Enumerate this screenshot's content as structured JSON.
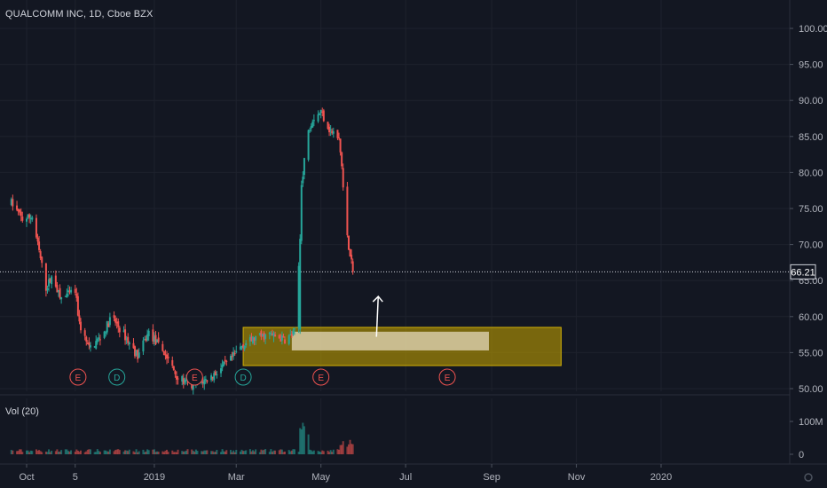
{
  "chart_data": {
    "type": "candlestick",
    "title": "QUALCOMM INC, 1D, Cboe BZX",
    "last_price": "66.21",
    "ylim": [
      50,
      100
    ],
    "y_ticks": [
      "100.00",
      "95.00",
      "90.00",
      "85.00",
      "80.00",
      "75.00",
      "70.00",
      "65.00",
      "60.00",
      "55.00",
      "50.00"
    ],
    "x_ticks": [
      "Oct",
      "5",
      "2019",
      "Mar",
      "May",
      "Jul",
      "Sep",
      "Nov",
      "2020"
    ],
    "volume": {
      "label": "Vol (20)",
      "ticks": [
        "100M",
        "0"
      ]
    },
    "price_path": [
      [
        "2018-09-20",
        75.8
      ],
      [
        "2018-09-28",
        73.5
      ],
      [
        "2018-10-05",
        73.9
      ],
      [
        "2018-10-10",
        69.0
      ],
      [
        "2018-10-15",
        64.0
      ],
      [
        "2018-10-20",
        65.8
      ],
      [
        "2018-10-25",
        62.5
      ],
      [
        "2018-11-05",
        63.5
      ],
      [
        "2018-11-08",
        59.0
      ],
      [
        "2018-11-15",
        55.5
      ],
      [
        "2018-11-25",
        57.5
      ],
      [
        "2018-12-01",
        60.0
      ],
      [
        "2018-12-10",
        57.5
      ],
      [
        "2018-12-20",
        54.5
      ],
      [
        "2018-12-28",
        57.8
      ],
      [
        "2019-01-08",
        55.0
      ],
      [
        "2019-01-18",
        51.5
      ],
      [
        "2019-01-28",
        50.3
      ],
      [
        "2019-02-10",
        51.5
      ],
      [
        "2019-02-25",
        54.0
      ],
      [
        "2019-03-05",
        56.0
      ],
      [
        "2019-03-15",
        57.0
      ],
      [
        "2019-03-25",
        57.5
      ],
      [
        "2019-04-05",
        56.8
      ],
      [
        "2019-04-09",
        57.3
      ],
      [
        "2019-04-12",
        57.8
      ],
      [
        "2019-04-16",
        70.0
      ],
      [
        "2019-04-17",
        78.5
      ],
      [
        "2019-04-22",
        86.0
      ],
      [
        "2019-04-25",
        87.5
      ],
      [
        "2019-05-01",
        88.5
      ],
      [
        "2019-05-07",
        86.0
      ],
      [
        "2019-05-14",
        84.5
      ],
      [
        "2019-05-16",
        81.0
      ],
      [
        "2019-05-17",
        78.5
      ],
      [
        "2019-05-20",
        71.0
      ],
      [
        "2019-05-24",
        66.4
      ]
    ],
    "earnings_markers": [
      {
        "label": "E",
        "date": "2018-11-07"
      },
      {
        "label": "D",
        "date": "2018-12-05"
      },
      {
        "label": "E",
        "date": "2019-01-30"
      },
      {
        "label": "D",
        "date": "2019-03-06"
      },
      {
        "label": "E",
        "date": "2019-05-01"
      },
      {
        "label": "E",
        "date": "2019-07-31"
      }
    ],
    "zone": {
      "from": "2019-03-06",
      "to": "2019-10-21",
      "low": 53.2,
      "high": 58.5
    },
    "inner_zone": {
      "from": "2019-04-10",
      "to": "2019-08-30",
      "low": 55.3,
      "high": 57.9
    },
    "arrow": {
      "date": "2019-06-10",
      "from": 57.2,
      "to": 62.8
    },
    "colors": {
      "up": "#26a69a",
      "down": "#ef5350",
      "zone": "#b89a00",
      "marker_e": "#ef5350",
      "marker_d": "#26a69a"
    }
  }
}
